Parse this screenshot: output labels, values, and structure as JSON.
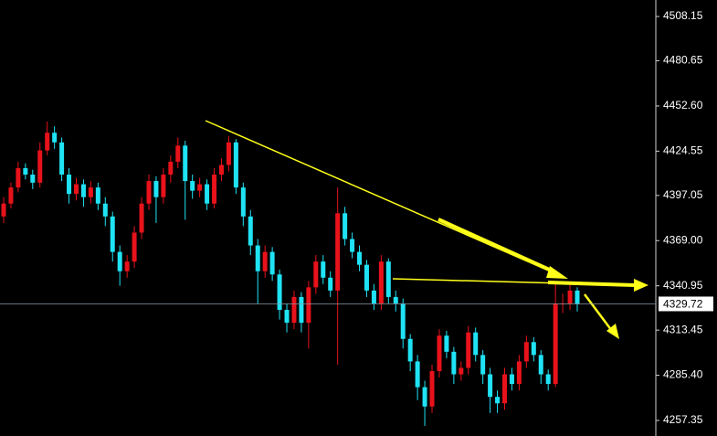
{
  "chart_data": {
    "type": "candlestick",
    "open": [
      4384,
      4392,
      4402,
      4414,
      4410,
      4405,
      4425,
      4436,
      4430,
      4410,
      4398,
      4404,
      4396,
      4402,
      4392,
      4384,
      4362,
      4350,
      4356,
      4374,
      4392,
      4406,
      4396,
      4410,
      4418,
      4428,
      4406,
      4400,
      4404,
      4392,
      4410,
      4416,
      4430,
      4402,
      4384,
      4366,
      4350,
      4362,
      4348,
      4326,
      4318,
      4334,
      4318,
      4340,
      4356,
      4346,
      4338,
      4386,
      4370,
      4362,
      4354,
      4338,
      4330,
      4356,
      4334,
      4330,
      4308,
      4294,
      4278,
      4266,
      4288,
      4310,
      4300,
      4286,
      4290,
      4312,
      4298,
      4286,
      4272,
      4268,
      4286,
      4280,
      4294,
      4306,
      4298,
      4286,
      4280,
      4330,
      4330,
      4338
    ],
    "high": [
      4396,
      4405,
      4418,
      4417,
      4413,
      4430,
      4443,
      4440,
      4433,
      4414,
      4408,
      4407,
      4406,
      4405,
      4396,
      4387,
      4366,
      4360,
      4378,
      4396,
      4410,
      4409,
      4414,
      4422,
      4433,
      4431,
      4410,
      4408,
      4407,
      4414,
      4420,
      4434,
      4432,
      4405,
      4388,
      4370,
      4366,
      4365,
      4351,
      4330,
      4338,
      4337,
      4344,
      4360,
      4360,
      4350,
      4402,
      4390,
      4374,
      4366,
      4357,
      4342,
      4360,
      4358,
      4338,
      4333,
      4311,
      4298,
      4282,
      4292,
      4314,
      4313,
      4303,
      4294,
      4316,
      4315,
      4301,
      4290,
      4276,
      4290,
      4290,
      4298,
      4310,
      4309,
      4301,
      4289,
      4342,
      4336,
      4342,
      4340
    ],
    "low": [
      4380,
      4389,
      4399,
      4407,
      4401,
      4402,
      4422,
      4426,
      4406,
      4392,
      4394,
      4390,
      4392,
      4388,
      4378,
      4356,
      4341,
      4346,
      4352,
      4370,
      4388,
      4380,
      4392,
      4405,
      4414,
      4382,
      4395,
      4396,
      4388,
      4389,
      4406,
      4412,
      4398,
      4378,
      4360,
      4330,
      4346,
      4344,
      4320,
      4312,
      4314,
      4312,
      4302,
      4336,
      4342,
      4334,
      4292,
      4366,
      4358,
      4350,
      4334,
      4326,
      4326,
      4330,
      4325,
      4302,
      4288,
      4270,
      4254,
      4262,
      4284,
      4296,
      4280,
      4282,
      4286,
      4294,
      4280,
      4262,
      4262,
      4264,
      4276,
      4276,
      4290,
      4294,
      4280,
      4276,
      4278,
      4324,
      4326,
      4325
    ],
    "close": [
      4392,
      4402,
      4414,
      4410,
      4405,
      4425,
      4436,
      4430,
      4410,
      4398,
      4404,
      4396,
      4402,
      4392,
      4384,
      4362,
      4350,
      4356,
      4374,
      4392,
      4406,
      4396,
      4410,
      4418,
      4428,
      4406,
      4400,
      4404,
      4392,
      4410,
      4416,
      4430,
      4402,
      4384,
      4366,
      4350,
      4362,
      4348,
      4326,
      4318,
      4334,
      4318,
      4340,
      4356,
      4346,
      4338,
      4386,
      4370,
      4362,
      4354,
      4338,
      4330,
      4356,
      4334,
      4330,
      4308,
      4294,
      4278,
      4266,
      4288,
      4310,
      4300,
      4286,
      4290,
      4312,
      4298,
      4286,
      4272,
      4268,
      4286,
      4280,
      4294,
      4306,
      4298,
      4286,
      4280,
      4330,
      4330,
      4338,
      4329.72
    ],
    "up_color": "#e8121b",
    "down_color": "#1fe3f5",
    "ylim": [
      4247.7,
      4518.4
    ],
    "yticks": [
      4257.35,
      {
        "value": 4285.4,
        "label": "4285.40"
      },
      4313.45,
      4340.95,
      {
        "value": 4369,
        "label": "4369.00"
      },
      4397.05,
      4424.55,
      {
        "value": 4452.6,
        "label": "4452.60"
      },
      4480.65,
      4508.15
    ],
    "current_price": 4329.72
  }
}
